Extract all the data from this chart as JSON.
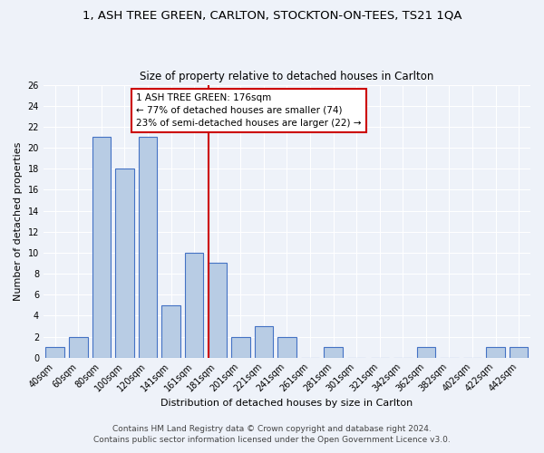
{
  "title": "1, ASH TREE GREEN, CARLTON, STOCKTON-ON-TEES, TS21 1QA",
  "subtitle": "Size of property relative to detached houses in Carlton",
  "xlabel": "Distribution of detached houses by size in Carlton",
  "ylabel": "Number of detached properties",
  "bins": [
    "40sqm",
    "60sqm",
    "80sqm",
    "100sqm",
    "120sqm",
    "141sqm",
    "161sqm",
    "181sqm",
    "201sqm",
    "221sqm",
    "241sqm",
    "261sqm",
    "281sqm",
    "301sqm",
    "321sqm",
    "342sqm",
    "362sqm",
    "382sqm",
    "402sqm",
    "422sqm",
    "442sqm"
  ],
  "values": [
    1,
    2,
    21,
    18,
    21,
    5,
    10,
    9,
    2,
    3,
    2,
    0,
    1,
    0,
    0,
    0,
    1,
    0,
    0,
    1,
    1
  ],
  "bar_color": "#b8cce4",
  "bar_edge_color": "#4472c4",
  "red_line_index": 7,
  "red_line_color": "#cc0000",
  "annotation_title": "1 ASH TREE GREEN: 176sqm",
  "annotation_line2": "← 77% of detached houses are smaller (74)",
  "annotation_line3": "23% of semi-detached houses are larger (22) →",
  "annotation_box_color": "#ffffff",
  "annotation_box_edge": "#cc0000",
  "ylim": [
    0,
    26
  ],
  "yticks": [
    0,
    2,
    4,
    6,
    8,
    10,
    12,
    14,
    16,
    18,
    20,
    22,
    24,
    26
  ],
  "footer1": "Contains HM Land Registry data © Crown copyright and database right 2024.",
  "footer2": "Contains public sector information licensed under the Open Government Licence v3.0.",
  "background_color": "#eef2f9",
  "grid_color": "#ffffff",
  "title_fontsize": 9.5,
  "subtitle_fontsize": 8.5,
  "axis_label_fontsize": 8,
  "tick_fontsize": 7,
  "annotation_fontsize": 7.5,
  "footer_fontsize": 6.5
}
